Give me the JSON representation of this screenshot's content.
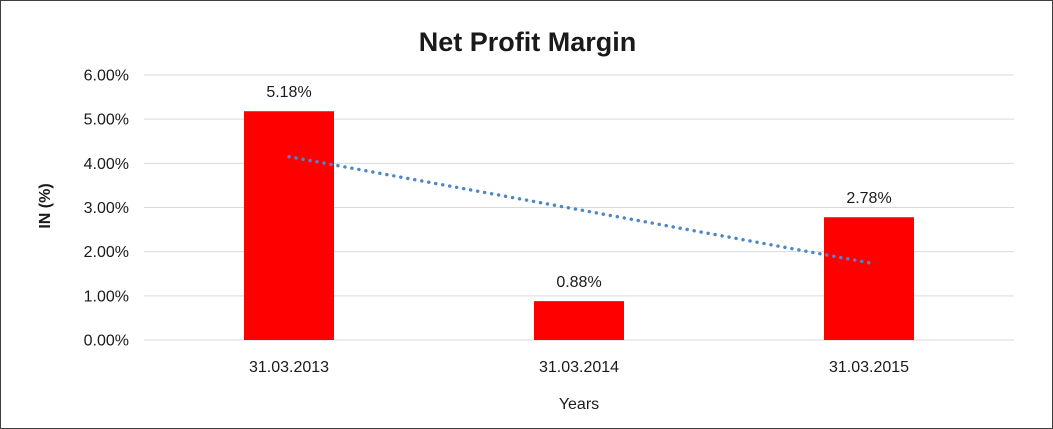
{
  "chart_data": {
    "type": "bar",
    "title": "Net Profit Margin",
    "xlabel": "Years",
    "ylabel": "IN (%)",
    "categories": [
      "31.03.2013",
      "31.03.2014",
      "31.03.2015"
    ],
    "values": [
      5.18,
      0.88,
      2.78
    ],
    "data_labels": [
      "5.18%",
      "0.88%",
      "2.78%"
    ],
    "ylim": [
      0,
      6
    ],
    "ytick_labels": [
      "0.00%",
      "1.00%",
      "2.00%",
      "3.00%",
      "4.00%",
      "5.00%",
      "6.00%"
    ],
    "grid": true,
    "legend_position": "none",
    "bar_color": "#ff0000",
    "gridline_color": "#d9d9d9",
    "text_color": "#1a1a1a",
    "trendline": {
      "type": "linear",
      "style": "dotted",
      "color": "#4f86c6",
      "start_value": 4.15,
      "end_value": 1.75
    }
  }
}
